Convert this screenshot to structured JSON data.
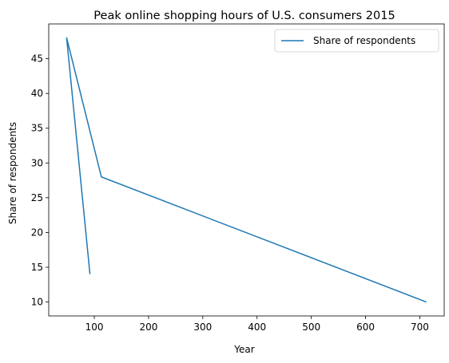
{
  "chart_data": {
    "type": "line",
    "title": "Peak online shopping hours of U.S. consumers 2015",
    "xlabel": "Year",
    "ylabel": "Share of respondents",
    "xlim": [
      16,
      745
    ],
    "ylim": [
      8,
      50
    ],
    "xticks": [
      100,
      200,
      300,
      400,
      500,
      600,
      700
    ],
    "yticks": [
      10,
      15,
      20,
      25,
      30,
      35,
      40,
      45
    ],
    "grid": false,
    "legend_position": "top-right",
    "series": [
      {
        "name": "Share of respondents",
        "color": "#1f77b4",
        "x": [
          92,
          49,
          113,
          712
        ],
        "y": [
          14,
          48,
          28,
          10
        ]
      }
    ]
  }
}
